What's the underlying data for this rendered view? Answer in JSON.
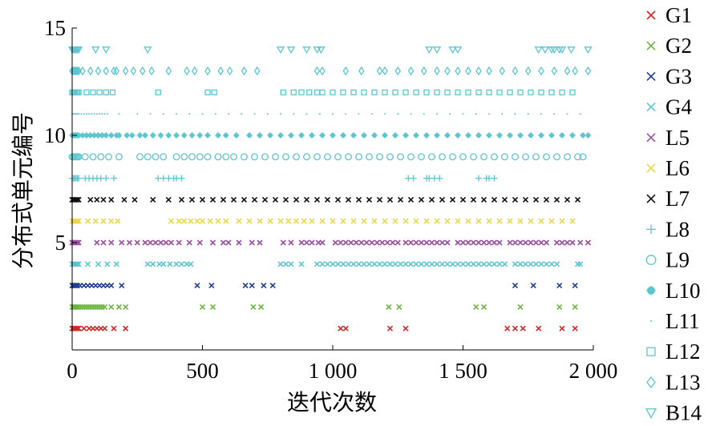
{
  "chart_data": {
    "type": "scatter",
    "title": "",
    "xlabel": "迭代次数",
    "ylabel": "分布式单元编号",
    "xlim": [
      0,
      2000
    ],
    "ylim": [
      0,
      15
    ],
    "xticks": [
      0,
      500,
      1000,
      1500,
      2000
    ],
    "xtick_labels": [
      "0",
      "500",
      "1 000",
      "1 500",
      "2 000"
    ],
    "yticks": [
      5,
      10,
      15
    ],
    "ytick_labels": [
      "5",
      "10",
      "15"
    ],
    "grid": false,
    "legend_position": "right-outside",
    "series": [
      {
        "name": "G1",
        "y": 1,
        "marker": "x",
        "color": "#d62728",
        "x": [
          0,
          5,
          10,
          15,
          20,
          25,
          45,
          65,
          80,
          95,
          110,
          125,
          160,
          205,
          1030,
          1050,
          1220,
          1280,
          1670,
          1700,
          1730,
          1790,
          1880,
          1930
        ]
      },
      {
        "name": "G2",
        "y": 2,
        "marker": "x",
        "color": "#6db33f",
        "x": [
          0,
          5,
          10,
          15,
          20,
          25,
          35,
          45,
          55,
          65,
          75,
          85,
          95,
          105,
          115,
          125,
          150,
          180,
          205,
          500,
          540,
          695,
          725,
          1215,
          1255,
          1550,
          1580,
          1720,
          1870,
          1930
        ]
      },
      {
        "name": "G3",
        "y": 3,
        "marker": "x",
        "color": "#1f3f8f",
        "x": [
          0,
          5,
          10,
          15,
          20,
          30,
          45,
          60,
          75,
          90,
          105,
          120,
          135,
          150,
          190,
          480,
          535,
          665,
          690,
          735,
          770,
          1700,
          1770,
          1870,
          1930
        ]
      },
      {
        "name": "G4",
        "y": 4,
        "marker": "x",
        "color": "#5cc5d0",
        "x": [
          0,
          5,
          10,
          15,
          20,
          25,
          60,
          100,
          135,
          170,
          290,
          310,
          335,
          350,
          375,
          400,
          420,
          440,
          455,
          800,
          820,
          840,
          880,
          940,
          960,
          980,
          1000,
          1020,
          1040,
          1060,
          1080,
          1100,
          1120,
          1140,
          1160,
          1180,
          1200,
          1220,
          1240,
          1260,
          1280,
          1300,
          1320,
          1340,
          1360,
          1380,
          1400,
          1420,
          1440,
          1460,
          1480,
          1500,
          1520,
          1540,
          1560,
          1580,
          1600,
          1620,
          1640,
          1660,
          1700,
          1720,
          1740,
          1760,
          1780,
          1800,
          1820,
          1840,
          1860,
          1940,
          1950
        ]
      },
      {
        "name": "L5",
        "y": 5,
        "marker": "x",
        "color": "#9b4fa0",
        "x": [
          0,
          5,
          10,
          15,
          20,
          25,
          95,
          120,
          150,
          190,
          220,
          250,
          280,
          300,
          320,
          340,
          360,
          380,
          410,
          450,
          490,
          540,
          580,
          600,
          640,
          690,
          720,
          810,
          840,
          880,
          900,
          920,
          945,
          960,
          1010,
          1030,
          1050,
          1070,
          1090,
          1110,
          1130,
          1150,
          1170,
          1190,
          1210,
          1230,
          1250,
          1280,
          1300,
          1320,
          1340,
          1360,
          1380,
          1400,
          1420,
          1440,
          1480,
          1500,
          1520,
          1540,
          1560,
          1580,
          1600,
          1620,
          1640,
          1680,
          1700,
          1720,
          1740,
          1760,
          1780,
          1800,
          1820,
          1860,
          1880,
          1900,
          1920,
          1950,
          1980
        ]
      },
      {
        "name": "L6",
        "y": 6,
        "marker": "x",
        "color": "#e8d84a",
        "x": [
          0,
          5,
          10,
          15,
          20,
          25,
          60,
          90,
          120,
          150,
          175,
          380,
          410,
          430,
          455,
          480,
          500,
          530,
          560,
          590,
          640,
          680,
          720,
          760,
          800,
          830,
          860,
          890,
          920,
          960,
          1000,
          1040,
          1080,
          1120,
          1160,
          1200,
          1240,
          1280,
          1320,
          1360,
          1400,
          1440,
          1480,
          1520,
          1560,
          1600,
          1640,
          1680,
          1720,
          1760,
          1800,
          1840,
          1880,
          1920
        ]
      },
      {
        "name": "L7",
        "y": 7,
        "marker": "x",
        "color": "#111111",
        "x": [
          0,
          5,
          10,
          15,
          20,
          25,
          70,
          95,
          120,
          150,
          200,
          240,
          310,
          370,
          420,
          460,
          500,
          540,
          580,
          620,
          660,
          700,
          740,
          780,
          820,
          860,
          900,
          940,
          980,
          1020,
          1060,
          1100,
          1140,
          1180,
          1220,
          1260,
          1300,
          1340,
          1380,
          1420,
          1460,
          1500,
          1540,
          1580,
          1620,
          1660,
          1700,
          1740,
          1780,
          1820,
          1860,
          1900,
          1940
        ]
      },
      {
        "name": "L8",
        "y": 8,
        "marker": "+",
        "color": "#5cc5d0",
        "x": [
          0,
          5,
          10,
          15,
          20,
          25,
          50,
          65,
          80,
          95,
          110,
          130,
          160,
          330,
          350,
          370,
          390,
          400,
          420,
          1290,
          1310,
          1360,
          1370,
          1390,
          1410,
          1560,
          1590,
          1600,
          1620
        ]
      },
      {
        "name": "L9",
        "y": 9,
        "marker": "o",
        "color": "#5cc5d0",
        "x": [
          0,
          5,
          10,
          15,
          20,
          25,
          50,
          80,
          110,
          140,
          180,
          260,
          290,
          320,
          350,
          400,
          430,
          460,
          490,
          520,
          560,
          590,
          620,
          660,
          700,
          740,
          780,
          820,
          860,
          900,
          940,
          980,
          1020,
          1060,
          1100,
          1140,
          1180,
          1220,
          1260,
          1300,
          1340,
          1380,
          1420,
          1460,
          1500,
          1540,
          1580,
          1620,
          1660,
          1700,
          1740,
          1780,
          1820,
          1860,
          1900,
          1940,
          1960
        ]
      },
      {
        "name": "L10",
        "y": 10,
        "marker": "*",
        "color": "#5cc5d0",
        "x": [
          0,
          5,
          10,
          15,
          20,
          25,
          40,
          55,
          70,
          85,
          100,
          115,
          130,
          150,
          170,
          180,
          210,
          230,
          260,
          280,
          310,
          340,
          370,
          400,
          430,
          460,
          490,
          520,
          560,
          590,
          630,
          680,
          720,
          760,
          800,
          840,
          880,
          920,
          960,
          1000,
          1040,
          1080,
          1120,
          1160,
          1200,
          1240,
          1280,
          1320,
          1360,
          1400,
          1440,
          1480,
          1520,
          1560,
          1600,
          1640,
          1680,
          1720,
          1760,
          1800,
          1840,
          1880,
          1920,
          1960,
          1980
        ]
      },
      {
        "name": "L11",
        "y": 11,
        "marker": ".",
        "color": "#5cc5d0",
        "x": [
          0,
          5,
          10,
          15,
          20,
          25,
          35,
          45,
          55,
          65,
          75,
          85,
          95,
          105,
          115,
          125,
          135,
          180,
          250,
          300,
          350,
          400,
          450,
          500,
          550,
          600,
          650,
          700,
          750,
          800,
          850,
          900,
          950,
          1000,
          1050,
          1100,
          1150,
          1200,
          1250,
          1300,
          1350,
          1400,
          1450,
          1500,
          1550,
          1600,
          1650,
          1700,
          1750,
          1800,
          1850,
          1900,
          1950
        ]
      },
      {
        "name": "L12",
        "y": 12,
        "marker": "s",
        "color": "#5cc5d0",
        "x": [
          0,
          5,
          10,
          15,
          20,
          25,
          55,
          80,
          105,
          130,
          155,
          330,
          520,
          545,
          810,
          850,
          880,
          910,
          940,
          960,
          1000,
          1040,
          1080,
          1120,
          1160,
          1200,
          1240,
          1280,
          1320,
          1360,
          1400,
          1440,
          1480,
          1520,
          1560,
          1600,
          1640,
          1680,
          1720,
          1760,
          1800,
          1840,
          1880,
          1920
        ]
      },
      {
        "name": "L13",
        "y": 13,
        "marker": "d",
        "color": "#5cc5d0",
        "x": [
          0,
          5,
          10,
          15,
          20,
          25,
          40,
          70,
          100,
          130,
          160,
          170,
          205,
          235,
          270,
          305,
          370,
          440,
          470,
          520,
          570,
          605,
          660,
          710,
          940,
          960,
          1050,
          1110,
          1180,
          1200,
          1250,
          1300,
          1350,
          1400,
          1440,
          1480,
          1520,
          1560,
          1600,
          1650,
          1700,
          1750,
          1800,
          1850,
          1900,
          1930,
          1980
        ]
      },
      {
        "name": "B14",
        "y": 14,
        "marker": "v",
        "color": "#5cc5d0",
        "x": [
          0,
          5,
          10,
          15,
          20,
          25,
          90,
          130,
          290,
          800,
          840,
          900,
          940,
          955,
          1370,
          1400,
          1460,
          1480,
          1790,
          1815,
          1840,
          1850,
          1870,
          1880,
          1915,
          1980
        ]
      }
    ]
  }
}
